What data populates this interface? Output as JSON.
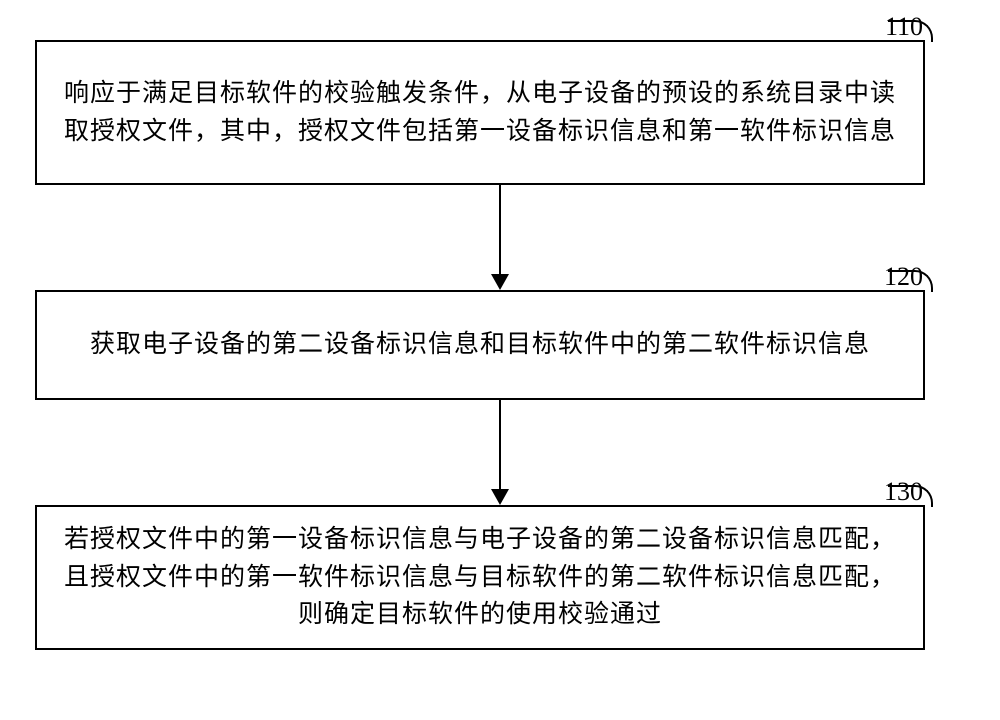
{
  "flowchart": {
    "type": "flowchart",
    "background_color": "#ffffff",
    "border_color": "#000000",
    "text_color": "#000000",
    "font_family": "SimSun",
    "font_size": 25,
    "label_font_size": 26,
    "box_border_width": 2,
    "steps": [
      {
        "id": "110",
        "label": "110",
        "text": "响应于满足目标软件的校验触发条件，从电子设备的预设的系统目录中读取授权文件，其中，授权文件包括第一设备标识信息和第一软件标识信息"
      },
      {
        "id": "120",
        "label": "120",
        "text": "获取电子设备的第二设备标识信息和目标软件中的第二软件标识信息"
      },
      {
        "id": "130",
        "label": "130",
        "text": "若授权文件中的第一设备标识信息与电子设备的第二设备标识信息匹配，且授权文件中的第一软件标识信息与目标软件的第二软件标识信息匹配，则确定目标软件的使用校验通过"
      }
    ],
    "arrows": [
      {
        "from": "110",
        "to": "120"
      },
      {
        "from": "120",
        "to": "130"
      }
    ]
  }
}
